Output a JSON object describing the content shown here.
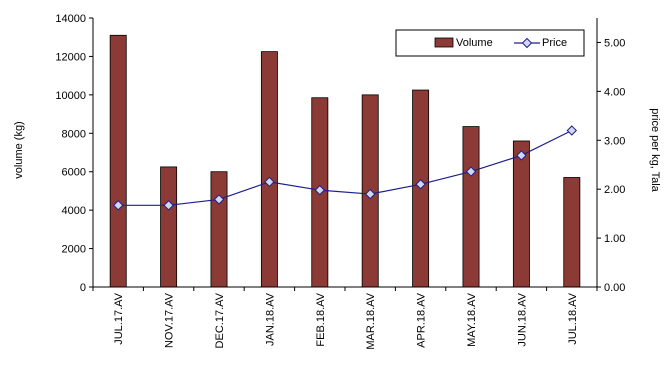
{
  "chart_data": {
    "type": "bar",
    "categories": [
      "JUL.17.AV",
      "NOV.17.AV",
      "DEC.17.AV",
      "JAN.18.AV",
      "FEB.18.AV",
      "MAR.18.AV",
      "APR.18.AV",
      "MAY.18.AV",
      "JUN.18.AV",
      "JUL.18.AV"
    ],
    "series": [
      {
        "name": "Volume",
        "type": "bar",
        "axis": "left",
        "color": "#8B3A36",
        "values": [
          13100,
          6250,
          6000,
          12250,
          9850,
          10000,
          10250,
          8350,
          7600,
          5700
        ]
      },
      {
        "name": "Price",
        "type": "line",
        "axis": "right",
        "color": "#1f1f8c",
        "values": [
          1.67,
          1.67,
          1.79,
          2.15,
          1.98,
          1.9,
          2.1,
          2.36,
          2.69,
          3.2
        ]
      }
    ],
    "ylabel": "volume (kg)",
    "y2label": "price per kg, Tala",
    "ylim": [
      0,
      14000
    ],
    "y2lim": [
      0,
      5.5
    ],
    "yticks": [
      "0",
      "2000",
      "4000",
      "6000",
      "8000",
      "10000",
      "12000",
      "14000"
    ],
    "y2ticks": [
      "0.00",
      "1.00",
      "2.00",
      "3.00",
      "4.00",
      "5.00"
    ],
    "legend_position": "top-right",
    "grid": false
  }
}
